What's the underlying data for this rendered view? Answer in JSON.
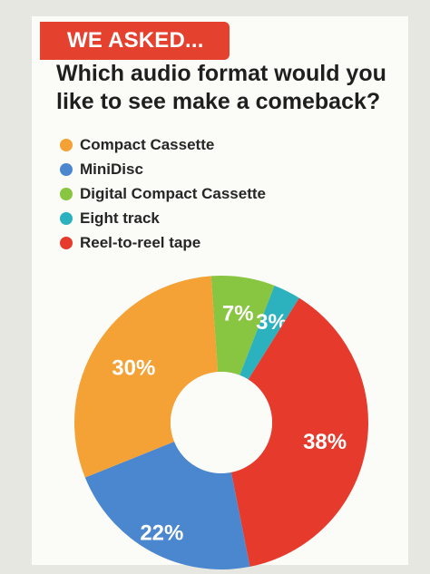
{
  "header": {
    "tag": "WE ASKED...",
    "question": "Which audio format would you like to see make a comeback?"
  },
  "chart_data": {
    "type": "pie",
    "donut": true,
    "title": "",
    "legend_position": "top-left",
    "slices": [
      {
        "label": "Compact Cassette",
        "value": 30,
        "display": "30%",
        "color": "#f4a235"
      },
      {
        "label": "MiniDisc",
        "value": 22,
        "display": "22%",
        "color": "#4b87cf"
      },
      {
        "label": "Digital Compact Cassette",
        "value": 7,
        "display": "7%",
        "color": "#88c540"
      },
      {
        "label": "Eight track",
        "value": 3,
        "display": "3%",
        "color": "#2cb2be"
      },
      {
        "label": "Reel-to-reel tape",
        "value": 38,
        "display": "38%",
        "color": "#e63a2d"
      }
    ]
  }
}
